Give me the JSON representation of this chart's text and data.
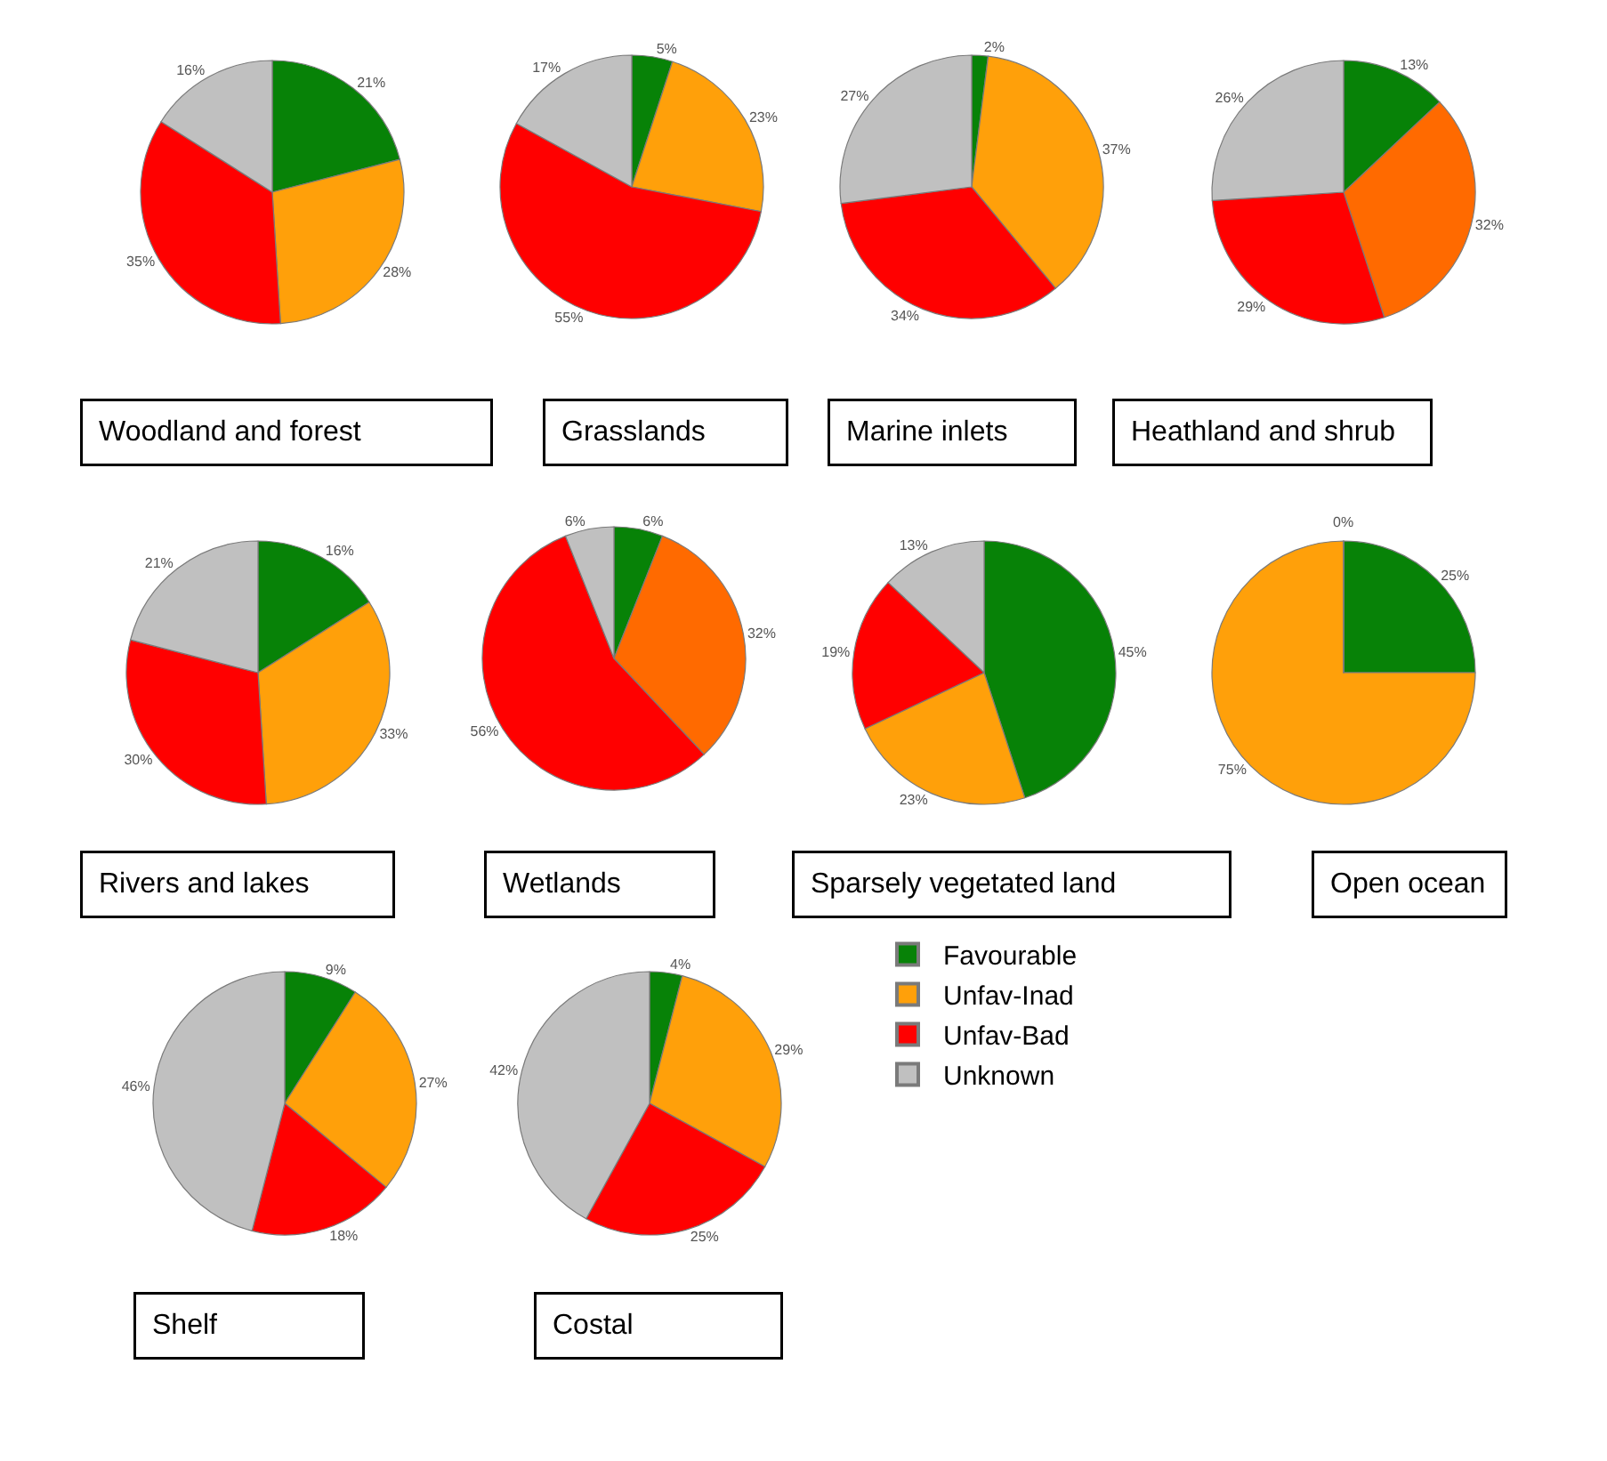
{
  "chart_data": [
    {
      "type": "pie",
      "title": "Woodland and forest",
      "categories": [
        "Favourable",
        "Unfav-Inad",
        "Unfav-Bad",
        "Unknown"
      ],
      "values": [
        21,
        28,
        35,
        16
      ],
      "value_labels": [
        "21%",
        "28%",
        "35%",
        "16%"
      ],
      "colors": [
        "#078207",
        "#ffa00a",
        "#ff0000",
        "#c0c0c0"
      ],
      "legend": "right"
    },
    {
      "type": "pie",
      "title": "Grasslands",
      "values": [
        5,
        23,
        55,
        17
      ],
      "value_labels": [
        "5%",
        "23%",
        "55%",
        "17%"
      ],
      "colors": [
        "#078207",
        "#ffa00a",
        "#ff0000",
        "#c0c0c0"
      ]
    },
    {
      "type": "pie",
      "title": "Marine inlets",
      "values": [
        2,
        37,
        34,
        27
      ],
      "value_labels": [
        "2%",
        "37%",
        "34%",
        "27%"
      ],
      "colors": [
        "#078207",
        "#ffa00a",
        "#ff0000",
        "#c0c0c0"
      ]
    },
    {
      "type": "pie",
      "title": "Heathland and shrub",
      "values": [
        13,
        32,
        29,
        26
      ],
      "value_labels": [
        "13%",
        "32%",
        "29%",
        "26%"
      ],
      "colors": [
        "#078207",
        "#ff6a00",
        "#ff0000",
        "#c0c0c0"
      ]
    },
    {
      "type": "pie",
      "title": "Rivers and lakes",
      "values": [
        16,
        33,
        30,
        21
      ],
      "value_labels": [
        "16%",
        "33%",
        "30%",
        "21%"
      ],
      "colors": [
        "#078207",
        "#ffa00a",
        "#ff0000",
        "#c0c0c0"
      ]
    },
    {
      "type": "pie",
      "title": "Wetlands",
      "values": [
        6,
        32,
        56,
        6
      ],
      "value_labels": [
        "6%",
        "32%",
        "56%",
        "6%"
      ],
      "colors": [
        "#078207",
        "#ff6a00",
        "#ff0000",
        "#c0c0c0"
      ]
    },
    {
      "type": "pie",
      "title": "Sparsely vegetated land",
      "values": [
        45,
        23,
        19,
        13
      ],
      "value_labels": [
        "45%",
        "23%",
        "19%",
        "13%"
      ],
      "colors": [
        "#078207",
        "#ffa00a",
        "#ff0000",
        "#c0c0c0"
      ]
    },
    {
      "type": "pie",
      "title": "Open ocean",
      "values": [
        25,
        75,
        0,
        0
      ],
      "value_labels": [
        "25%",
        "75%",
        null,
        null
      ],
      "annotations": [
        "0%"
      ],
      "colors": [
        "#078207",
        "#ffa00a",
        "#ff0000",
        "#c0c0c0"
      ]
    },
    {
      "type": "pie",
      "title": "Shelf",
      "values": [
        9,
        27,
        18,
        46
      ],
      "value_labels": [
        "9%",
        "27%",
        "18%",
        "46%"
      ],
      "colors": [
        "#078207",
        "#ffa00a",
        "#ff0000",
        "#c0c0c0"
      ]
    },
    {
      "type": "pie",
      "title": "Costal",
      "values": [
        4,
        29,
        25,
        42
      ],
      "value_labels": [
        "4%",
        "29%",
        "25%",
        "42%"
      ],
      "colors": [
        "#078207",
        "#ffa00a",
        "#ff0000",
        "#c0c0c0"
      ]
    }
  ]
}
